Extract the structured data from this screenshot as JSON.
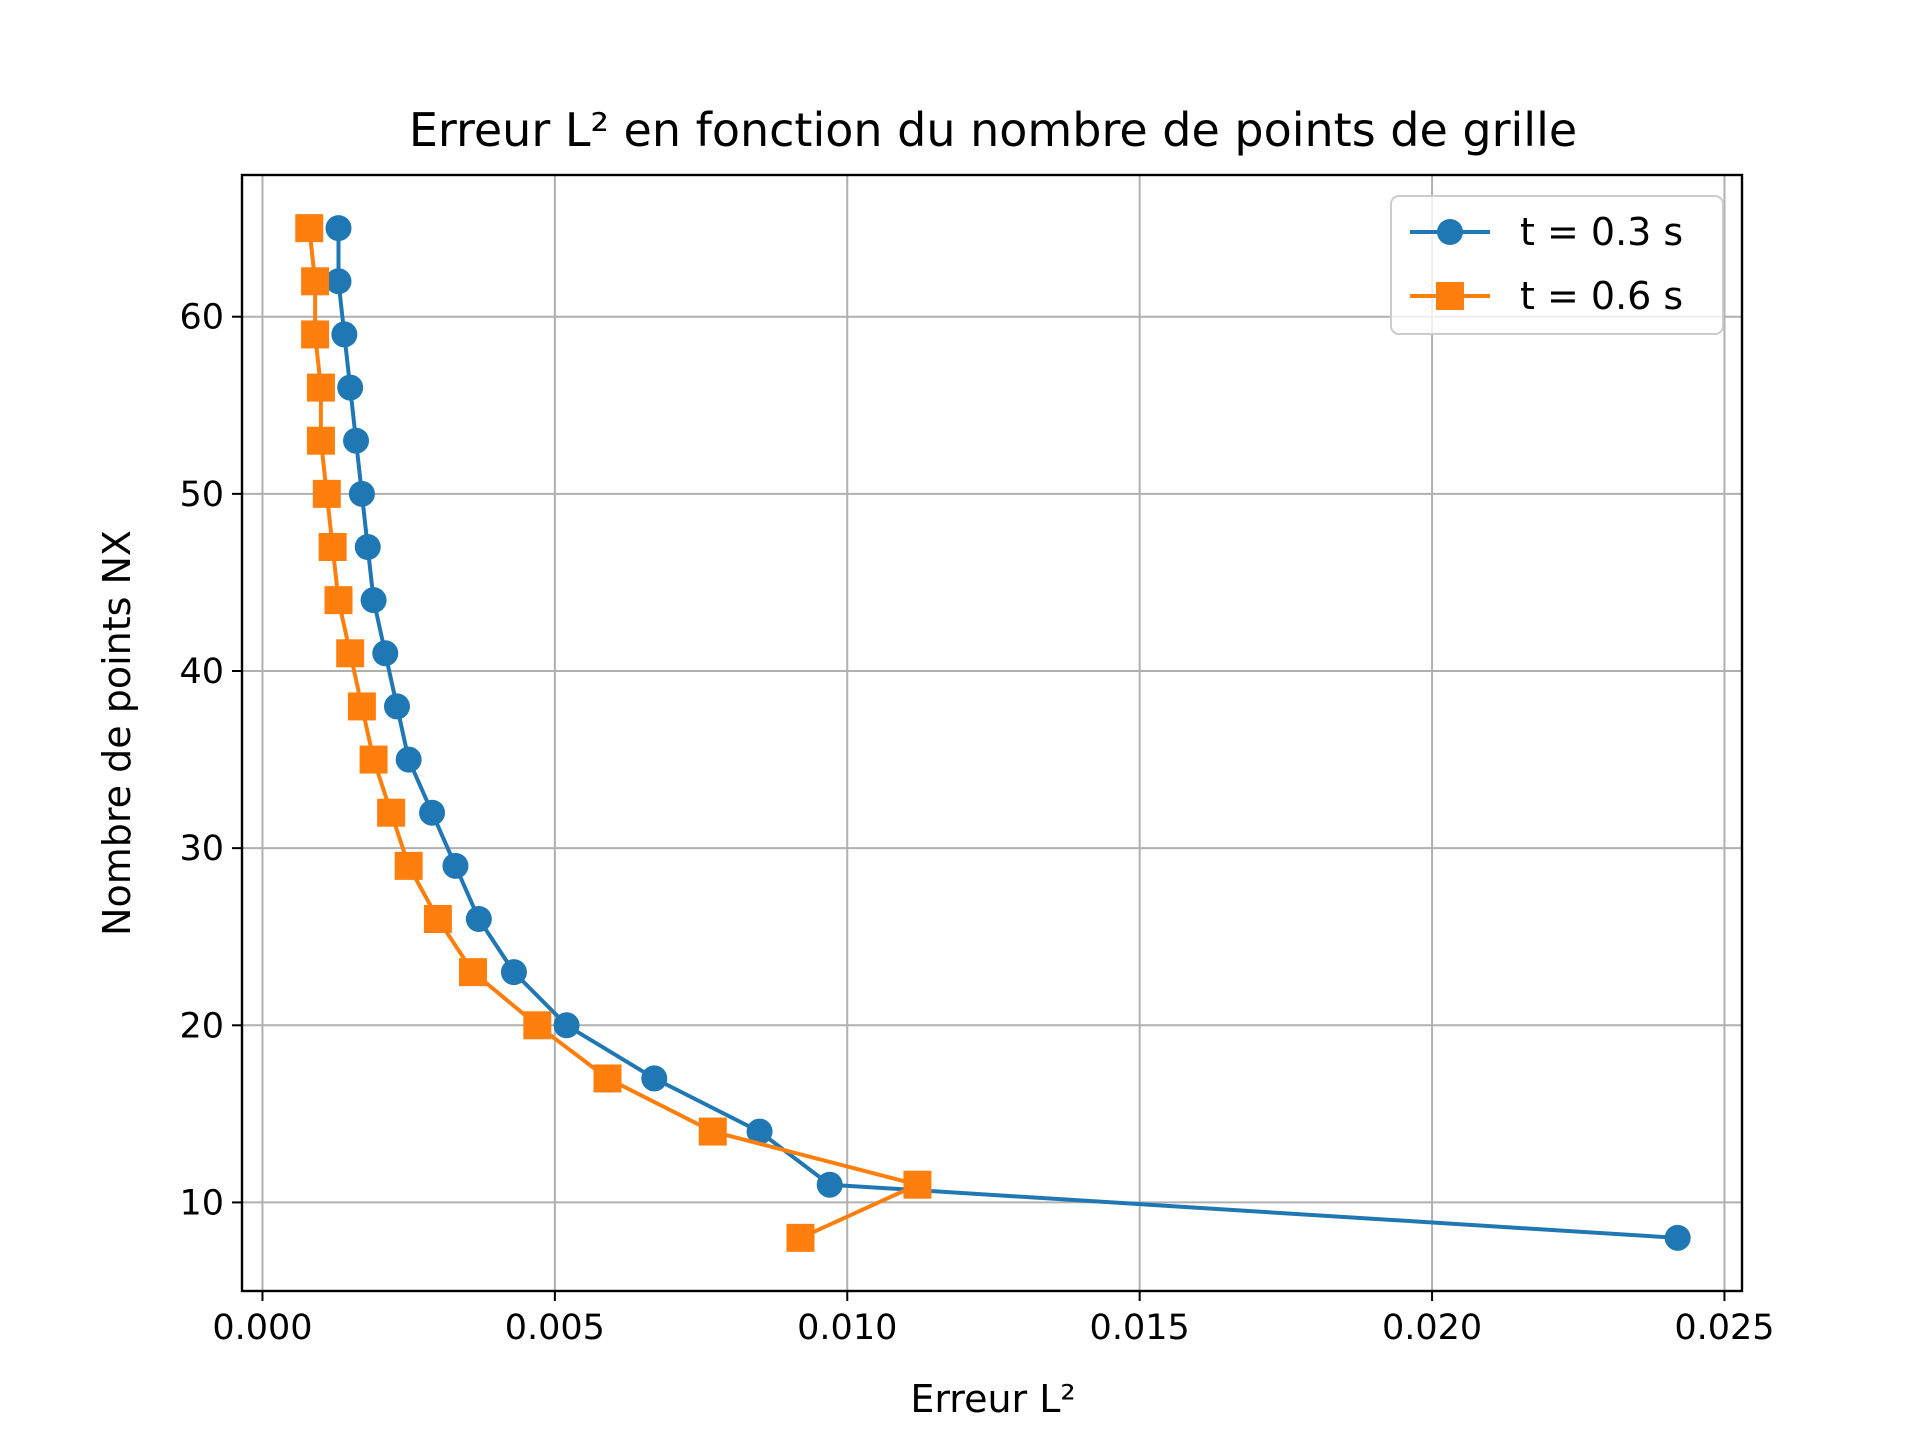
{
  "chart_data": {
    "type": "line",
    "title": "Erreur L² en fonction du nombre de points de grille",
    "xlabel": "Erreur L²",
    "ylabel": "Nombre de points NX",
    "xlim": [
      -0.00035,
      0.0253
    ],
    "ylim": [
      5,
      68
    ],
    "x_ticks": [
      0.0,
      0.005,
      0.01,
      0.015,
      0.02,
      0.025
    ],
    "x_tick_labels": [
      "0.000",
      "0.005",
      "0.010",
      "0.015",
      "0.020",
      "0.025"
    ],
    "y_ticks": [
      10,
      20,
      30,
      40,
      50,
      60
    ],
    "y_tick_labels": [
      "10",
      "20",
      "30",
      "40",
      "50",
      "60"
    ],
    "grid": true,
    "legend_position": "top-right",
    "series": [
      {
        "name": "t = 0.3 s",
        "color": "#1f77b4",
        "marker": "circle",
        "x": [
          0.0242,
          0.0097,
          0.0085,
          0.0067,
          0.0052,
          0.0043,
          0.0037,
          0.0033,
          0.0029,
          0.0025,
          0.0023,
          0.0021,
          0.0019,
          0.0018,
          0.0017,
          0.0016,
          0.0015,
          0.0014,
          0.0013,
          0.0013
        ],
        "y": [
          8,
          11,
          14,
          17,
          20,
          23,
          26,
          29,
          32,
          35,
          38,
          41,
          44,
          47,
          50,
          53,
          56,
          59,
          62,
          65
        ]
      },
      {
        "name": "t = 0.6 s",
        "color": "#ff7f0e",
        "marker": "square",
        "x": [
          0.0092,
          0.0112,
          0.0077,
          0.0059,
          0.0047,
          0.0036,
          0.003,
          0.0025,
          0.0022,
          0.0019,
          0.0017,
          0.0015,
          0.0013,
          0.0012,
          0.0011,
          0.001,
          0.001,
          0.0009,
          0.0009,
          0.0008
        ],
        "y": [
          8,
          11,
          14,
          17,
          20,
          23,
          26,
          29,
          32,
          35,
          38,
          41,
          44,
          47,
          50,
          53,
          56,
          59,
          62,
          65
        ]
      }
    ]
  }
}
